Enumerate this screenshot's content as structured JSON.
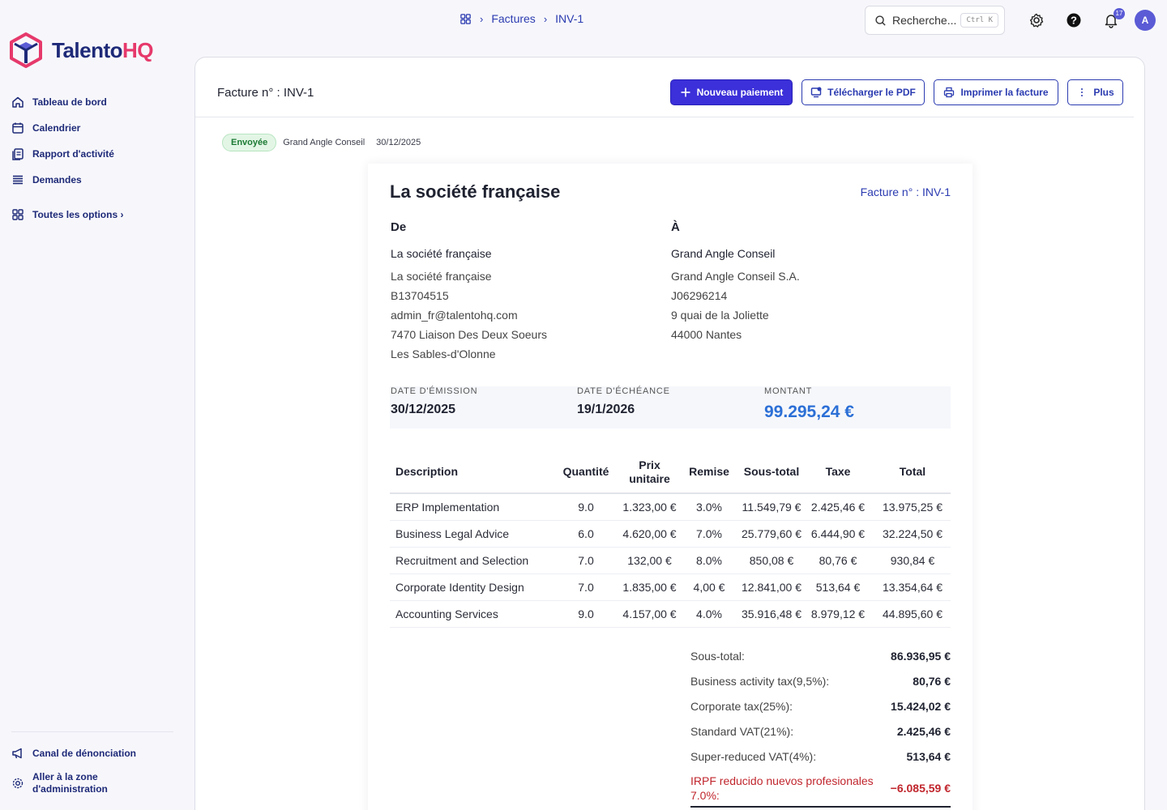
{
  "brand": {
    "name_main": "Talento",
    "name_accent": "HQ"
  },
  "sidebar": {
    "items": [
      {
        "label": "Tableau de bord",
        "icon": "home-icon"
      },
      {
        "label": "Calendrier",
        "icon": "calendar-icon"
      },
      {
        "label": "Rapport d'activité",
        "icon": "report-icon"
      },
      {
        "label": "Demandes",
        "icon": "list-icon"
      }
    ],
    "all_options": "Toutes les options ›",
    "bottom": [
      {
        "label": "Canal de dénonciation",
        "icon": "megaphone-icon"
      },
      {
        "label_line1": "Aller à la zone",
        "label_line2": "d'administration",
        "icon": "gear-icon"
      }
    ]
  },
  "header": {
    "breadcrumb": [
      "Factures",
      "INV-1"
    ],
    "search": {
      "placeholder": "Recherche...",
      "shortcut": "Ctrl K"
    },
    "notification_count": "17",
    "avatar_initial": "A"
  },
  "page": {
    "title": "Facture n° : INV-1",
    "buttons": {
      "new_payment": "Nouveau paiement",
      "download_pdf": "Télécharger le PDF",
      "print": "Imprimer la facture",
      "more": "Plus"
    },
    "status": "Envoyée",
    "client": "Grand Angle Conseil",
    "date": "30/12/2025"
  },
  "invoice": {
    "company": "La société française",
    "number_label": "Facture n° : INV-1",
    "from": {
      "heading": "De",
      "name": "La société française",
      "lines": [
        "La société française",
        "B13704515",
        "admin_fr@talentohq.com",
        "7470 Liaison Des Deux Soeurs",
        "Les Sables-d'Olonne"
      ]
    },
    "to": {
      "heading": "À",
      "name": "Grand Angle Conseil",
      "lines": [
        "Grand Angle Conseil S.A.",
        "J06296214",
        "9 quai de la Joliette",
        "44000 Nantes"
      ]
    },
    "dates": {
      "issue_label": "DATE D'ÉMISSION",
      "issue_value": "30/12/2025",
      "due_label": "DATE D'ÉCHÉANCE",
      "due_value": "19/1/2026",
      "amount_label": "MONTANT",
      "amount_value": "99.295,24 €"
    },
    "table": {
      "headers": [
        "Description",
        "Quantité",
        "Prix unitaire",
        "Remise",
        "Sous-total",
        "Taxe",
        "Total"
      ],
      "rows": [
        [
          "ERP Implementation",
          "9.0",
          "1.323,00 €",
          "3.0%",
          "11.549,79 €",
          "2.425,46 €",
          "13.975,25 €"
        ],
        [
          "Business Legal Advice",
          "6.0",
          "4.620,00 €",
          "7.0%",
          "25.779,60 €",
          "6.444,90 €",
          "32.224,50 €"
        ],
        [
          "Recruitment and Selection",
          "7.0",
          "132,00 €",
          "8.0%",
          "850,08 €",
          "80,76 €",
          "930,84 €"
        ],
        [
          "Corporate Identity Design",
          "7.0",
          "1.835,00 €",
          "4,00 €",
          "12.841,00 €",
          "513,64 €",
          "13.354,64 €"
        ],
        [
          "Accounting Services",
          "9.0",
          "4.157,00 €",
          "4.0%",
          "35.916,48 €",
          "8.979,12 €",
          "44.895,60 €"
        ]
      ]
    },
    "totals": [
      {
        "label": "Sous-total:",
        "value": "86.936,95 €"
      },
      {
        "label": "Business activity tax(9,5%):",
        "value": "80,76 €"
      },
      {
        "label": "Corporate tax(25%):",
        "value": "15.424,02 €"
      },
      {
        "label": "Standard VAT(21%):",
        "value": "2.425,46 €"
      },
      {
        "label": "Super-reduced VAT(4%):",
        "value": "513,64 €"
      }
    ],
    "deduction": {
      "label": "IRPF reducido nuevos profesionales 7.0%:",
      "value": "−6.085,59 €"
    }
  },
  "colors": {
    "brand_navy": "#1e2a78",
    "brand_accent": "#e6396b",
    "primary": "#3b30d9",
    "amount": "#2b6fd6",
    "negative": "#c0262d"
  }
}
